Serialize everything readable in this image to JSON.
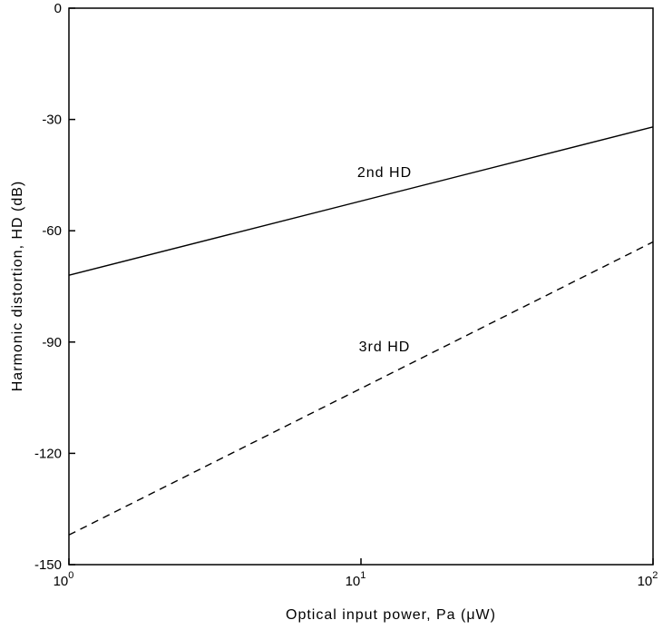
{
  "chart_data": {
    "type": "line",
    "title": "",
    "xlabel": "Optical input power, Pa (μW)",
    "ylabel": "Harmonic distortion, HD (dB)",
    "xscale": "log",
    "xlim": [
      1,
      100
    ],
    "ylim": [
      -150,
      0
    ],
    "grid": false,
    "x_ticks": [
      {
        "value": 1,
        "base": "10",
        "exp": "0"
      },
      {
        "value": 10,
        "base": "10",
        "exp": "1"
      },
      {
        "value": 100,
        "base": "10",
        "exp": "2"
      }
    ],
    "y_ticks": [
      {
        "value": 0,
        "label": "0"
      },
      {
        "value": -30,
        "label": "-30"
      },
      {
        "value": -60,
        "label": "-60"
      },
      {
        "value": -90,
        "label": "-90"
      },
      {
        "value": -120,
        "label": "-120"
      },
      {
        "value": -150,
        "label": "-150"
      }
    ],
    "series": [
      {
        "name": "2nd HD",
        "style": "solid",
        "color": "#000000",
        "x": [
          1,
          100
        ],
        "y": [
          -72,
          -32
        ]
      },
      {
        "name": "3rd HD",
        "style": "dashed",
        "color": "#000000",
        "x": [
          1,
          100
        ],
        "y": [
          -142,
          -63
        ]
      }
    ],
    "annotations": [
      {
        "text": "2nd HD",
        "x": 10,
        "y": -45
      },
      {
        "text": "3rd HD",
        "x": 10,
        "y": -92
      }
    ]
  }
}
